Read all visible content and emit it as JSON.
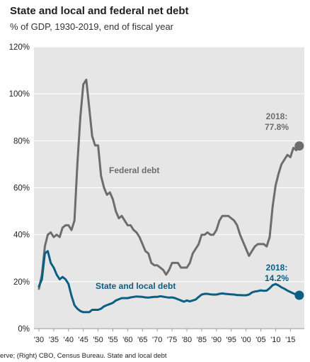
{
  "chart_data": {
    "type": "line",
    "title": "State and local and federal net debt",
    "subtitle": "% of GDP, 1930-2019, end of fiscal year",
    "xlim": [
      1930,
      2019
    ],
    "ylim": [
      0,
      120
    ],
    "y_ticks": [
      0,
      20,
      40,
      60,
      80,
      100,
      120
    ],
    "y_tick_labels": [
      "0%",
      "20%",
      "40%",
      "60%",
      "80%",
      "100%",
      "120%"
    ],
    "x_ticks": [
      1930,
      1935,
      1940,
      1945,
      1950,
      1955,
      1960,
      1965,
      1970,
      1975,
      1980,
      1985,
      1990,
      1995,
      2000,
      2005,
      2010,
      2015
    ],
    "x_tick_labels": [
      "'30",
      "'35",
      "'40",
      "'45",
      "'50",
      "'55",
      "'60",
      "'65",
      "'70",
      "'75",
      "'80",
      "'85",
      "'90",
      "'95",
      "'00",
      "'05",
      "'10",
      "'15"
    ],
    "grid": "horizontal",
    "series": [
      {
        "name": "Federal debt",
        "color": "#6d6d6d",
        "x": [
          1930,
          1931,
          1932,
          1933,
          1934,
          1935,
          1936,
          1937,
          1938,
          1939,
          1940,
          1941,
          1942,
          1943,
          1944,
          1945,
          1946,
          1947,
          1948,
          1949,
          1950,
          1951,
          1952,
          1953,
          1954,
          1955,
          1956,
          1957,
          1958,
          1959,
          1960,
          1961,
          1962,
          1963,
          1964,
          1965,
          1966,
          1967,
          1968,
          1969,
          1970,
          1971,
          1972,
          1973,
          1974,
          1975,
          1976,
          1977,
          1978,
          1979,
          1980,
          1981,
          1982,
          1983,
          1984,
          1985,
          1986,
          1987,
          1988,
          1989,
          1990,
          1991,
          1992,
          1993,
          1994,
          1995,
          1996,
          1997,
          1998,
          1999,
          2000,
          2001,
          2002,
          2003,
          2004,
          2005,
          2006,
          2007,
          2008,
          2009,
          2010,
          2011,
          2012,
          2013,
          2014,
          2015,
          2016,
          2017,
          2018
        ],
        "values": [
          17,
          23,
          35,
          40,
          41,
          39,
          40,
          39,
          43,
          44,
          44,
          42,
          46,
          70,
          90,
          104,
          106,
          94,
          82,
          78,
          78,
          65,
          60,
          57,
          58,
          55,
          50,
          47,
          48,
          46,
          44,
          44,
          42,
          41,
          39,
          36,
          33,
          32,
          28,
          27,
          27,
          26,
          25,
          23,
          25,
          28,
          28,
          28,
          26,
          26,
          26,
          28,
          32,
          34,
          36,
          40,
          40,
          41,
          40,
          40,
          42,
          46,
          48,
          48,
          48,
          47,
          46,
          44,
          40,
          37,
          34,
          31,
          33,
          35,
          36,
          36,
          36,
          35,
          39,
          52,
          61,
          66,
          70,
          72,
          74,
          73,
          77,
          76,
          78
        ]
      },
      {
        "name": "State and local debt",
        "color": "#0b5f83",
        "x": [
          1930,
          1931,
          1932,
          1933,
          1934,
          1935,
          1936,
          1937,
          1938,
          1939,
          1940,
          1941,
          1942,
          1943,
          1944,
          1945,
          1946,
          1947,
          1948,
          1949,
          1950,
          1951,
          1952,
          1953,
          1954,
          1955,
          1956,
          1957,
          1958,
          1959,
          1960,
          1961,
          1962,
          1963,
          1964,
          1965,
          1966,
          1967,
          1968,
          1969,
          1970,
          1971,
          1972,
          1973,
          1974,
          1975,
          1976,
          1977,
          1978,
          1979,
          1980,
          1981,
          1982,
          1983,
          1984,
          1985,
          1986,
          1987,
          1988,
          1989,
          1990,
          1991,
          1992,
          1993,
          1994,
          1995,
          1996,
          1997,
          1998,
          1999,
          2000,
          2001,
          2002,
          2003,
          2004,
          2005,
          2006,
          2007,
          2008,
          2009,
          2010,
          2011,
          2012,
          2013,
          2014,
          2015,
          2016,
          2017,
          2018
        ],
        "values": [
          18,
          21,
          32,
          33,
          28,
          26,
          23,
          21,
          22,
          21,
          19,
          14,
          10,
          8.5,
          7.5,
          7,
          7,
          7,
          8,
          8,
          8,
          8.5,
          9.5,
          10,
          10.5,
          11,
          12,
          12.5,
          13,
          13,
          13,
          13.3,
          13.5,
          13.7,
          13.6,
          13.5,
          13.3,
          13.2,
          13.4,
          13.5,
          13.5,
          13.8,
          13.6,
          13.4,
          13.2,
          13.3,
          13,
          12.5,
          12,
          11.5,
          12,
          11.6,
          12,
          12.4,
          13.5,
          14.5,
          14.8,
          14.8,
          14.6,
          14.5,
          14.5,
          14.8,
          15,
          14.8,
          14.7,
          14.6,
          14.5,
          14.3,
          14.3,
          14.2,
          14.2,
          14.5,
          15.4,
          15.8,
          16,
          16.3,
          16.1,
          16.2,
          17.2,
          18.5,
          19,
          18.4,
          17.6,
          17,
          16.2,
          15.6,
          15,
          14.5,
          14.2
        ]
      }
    ],
    "annotations": [
      {
        "series": "Federal debt",
        "lines": [
          "2018:",
          "77.8%"
        ],
        "x": 2018,
        "y": 77.8
      },
      {
        "series": "State and local debt",
        "lines": [
          "2018:",
          "14.2%"
        ],
        "x": 2018,
        "y": 14.2
      }
    ]
  },
  "footnote": "erve; (Right) CBO, Census Bureau. State and local debt"
}
